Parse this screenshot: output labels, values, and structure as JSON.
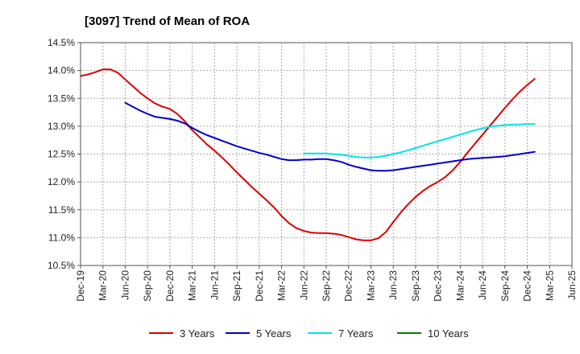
{
  "chart_data": {
    "type": "line",
    "title": "[3097]  Trend of Mean of ROA",
    "xlabel": "",
    "ylabel": "",
    "ylim": [
      10.5,
      14.5
    ],
    "xlim": [
      0,
      66
    ],
    "grid": true,
    "y_ticks": [
      {
        "value": 10.5,
        "label": "10.5%"
      },
      {
        "value": 11.0,
        "label": "11.0%"
      },
      {
        "value": 11.5,
        "label": "11.5%"
      },
      {
        "value": 12.0,
        "label": "12.0%"
      },
      {
        "value": 12.5,
        "label": "12.5%"
      },
      {
        "value": 13.0,
        "label": "13.0%"
      },
      {
        "value": 13.5,
        "label": "13.5%"
      },
      {
        "value": 14.0,
        "label": "14.0%"
      },
      {
        "value": 14.5,
        "label": "14.5%"
      }
    ],
    "x_ticks": [
      {
        "value": 0,
        "label": "Dec-19"
      },
      {
        "value": 3,
        "label": "Mar-20"
      },
      {
        "value": 6,
        "label": "Jun-20"
      },
      {
        "value": 9,
        "label": "Sep-20"
      },
      {
        "value": 12,
        "label": "Dec-20"
      },
      {
        "value": 15,
        "label": "Mar-21"
      },
      {
        "value": 18,
        "label": "Jun-21"
      },
      {
        "value": 21,
        "label": "Sep-21"
      },
      {
        "value": 24,
        "label": "Dec-21"
      },
      {
        "value": 27,
        "label": "Mar-22"
      },
      {
        "value": 30,
        "label": "Jun-22"
      },
      {
        "value": 33,
        "label": "Sep-22"
      },
      {
        "value": 36,
        "label": "Dec-22"
      },
      {
        "value": 39,
        "label": "Mar-23"
      },
      {
        "value": 42,
        "label": "Jun-23"
      },
      {
        "value": 45,
        "label": "Sep-23"
      },
      {
        "value": 48,
        "label": "Dec-23"
      },
      {
        "value": 51,
        "label": "Mar-24"
      },
      {
        "value": 54,
        "label": "Jun-24"
      },
      {
        "value": 57,
        "label": "Sep-24"
      },
      {
        "value": 60,
        "label": "Dec-24"
      },
      {
        "value": 63,
        "label": "Mar-25"
      },
      {
        "value": 66,
        "label": "Jun-25"
      }
    ],
    "series": [
      {
        "name": "3 Years",
        "color": "#dd0000",
        "points": [
          [
            0,
            13.9
          ],
          [
            1,
            13.93
          ],
          [
            2,
            13.97
          ],
          [
            3,
            14.02
          ],
          [
            4,
            14.02
          ],
          [
            5,
            13.96
          ],
          [
            6,
            13.84
          ],
          [
            7,
            13.72
          ],
          [
            8,
            13.6
          ],
          [
            9,
            13.5
          ],
          [
            10,
            13.41
          ],
          [
            11,
            13.35
          ],
          [
            12,
            13.31
          ],
          [
            13,
            13.22
          ],
          [
            14,
            13.09
          ],
          [
            15,
            12.93
          ],
          [
            16,
            12.8
          ],
          [
            17,
            12.67
          ],
          [
            18,
            12.56
          ],
          [
            19,
            12.44
          ],
          [
            20,
            12.31
          ],
          [
            21,
            12.17
          ],
          [
            22,
            12.04
          ],
          [
            23,
            11.91
          ],
          [
            24,
            11.79
          ],
          [
            25,
            11.67
          ],
          [
            26,
            11.54
          ],
          [
            27,
            11.39
          ],
          [
            28,
            11.26
          ],
          [
            29,
            11.17
          ],
          [
            30,
            11.12
          ],
          [
            31,
            11.09
          ],
          [
            32,
            11.08
          ],
          [
            33,
            11.08
          ],
          [
            34,
            11.07
          ],
          [
            35,
            11.05
          ],
          [
            36,
            11.01
          ],
          [
            37,
            10.97
          ],
          [
            38,
            10.95
          ],
          [
            39,
            10.95
          ],
          [
            40,
            10.99
          ],
          [
            41,
            11.1
          ],
          [
            42,
            11.28
          ],
          [
            43,
            11.45
          ],
          [
            44,
            11.6
          ],
          [
            45,
            11.73
          ],
          [
            46,
            11.84
          ],
          [
            47,
            11.93
          ],
          [
            48,
            12.0
          ],
          [
            49,
            12.09
          ],
          [
            50,
            12.21
          ],
          [
            51,
            12.36
          ],
          [
            52,
            12.53
          ],
          [
            53,
            12.69
          ],
          [
            54,
            12.85
          ],
          [
            55,
            13.01
          ],
          [
            56,
            13.17
          ],
          [
            57,
            13.33
          ],
          [
            58,
            13.48
          ],
          [
            59,
            13.62
          ],
          [
            60,
            13.74
          ],
          [
            61,
            13.85
          ]
        ]
      },
      {
        "name": "5 Years",
        "color": "#0000cc",
        "points": [
          [
            6,
            13.42
          ],
          [
            7,
            13.35
          ],
          [
            8,
            13.28
          ],
          [
            9,
            13.22
          ],
          [
            10,
            13.17
          ],
          [
            11,
            13.15
          ],
          [
            12,
            13.13
          ],
          [
            13,
            13.1
          ],
          [
            14,
            13.05
          ],
          [
            15,
            12.97
          ],
          [
            16,
            12.9
          ],
          [
            17,
            12.84
          ],
          [
            18,
            12.79
          ],
          [
            19,
            12.74
          ],
          [
            20,
            12.69
          ],
          [
            21,
            12.64
          ],
          [
            22,
            12.6
          ],
          [
            23,
            12.56
          ],
          [
            24,
            12.52
          ],
          [
            25,
            12.49
          ],
          [
            26,
            12.45
          ],
          [
            27,
            12.41
          ],
          [
            28,
            12.39
          ],
          [
            29,
            12.39
          ],
          [
            30,
            12.4
          ],
          [
            31,
            12.4
          ],
          [
            32,
            12.41
          ],
          [
            33,
            12.41
          ],
          [
            34,
            12.39
          ],
          [
            35,
            12.36
          ],
          [
            36,
            12.31
          ],
          [
            37,
            12.27
          ],
          [
            38,
            12.24
          ],
          [
            39,
            12.21
          ],
          [
            40,
            12.2
          ],
          [
            41,
            12.2
          ],
          [
            42,
            12.21
          ],
          [
            43,
            12.23
          ],
          [
            44,
            12.25
          ],
          [
            45,
            12.27
          ],
          [
            46,
            12.29
          ],
          [
            47,
            12.31
          ],
          [
            48,
            12.33
          ],
          [
            49,
            12.35
          ],
          [
            50,
            12.37
          ],
          [
            51,
            12.39
          ],
          [
            52,
            12.41
          ],
          [
            53,
            12.42
          ],
          [
            54,
            12.43
          ],
          [
            55,
            12.44
          ],
          [
            56,
            12.45
          ],
          [
            57,
            12.46
          ],
          [
            58,
            12.48
          ],
          [
            59,
            12.5
          ],
          [
            60,
            12.52
          ],
          [
            61,
            12.54
          ]
        ]
      },
      {
        "name": "7 Years",
        "color": "#00e5e5",
        "points": [
          [
            30,
            12.51
          ],
          [
            31,
            12.51
          ],
          [
            32,
            12.51
          ],
          [
            33,
            12.51
          ],
          [
            34,
            12.5
          ],
          [
            35,
            12.49
          ],
          [
            36,
            12.47
          ],
          [
            37,
            12.45
          ],
          [
            38,
            12.44
          ],
          [
            39,
            12.44
          ],
          [
            40,
            12.45
          ],
          [
            41,
            12.47
          ],
          [
            42,
            12.5
          ],
          [
            43,
            12.53
          ],
          [
            44,
            12.57
          ],
          [
            45,
            12.61
          ],
          [
            46,
            12.65
          ],
          [
            47,
            12.69
          ],
          [
            48,
            12.73
          ],
          [
            49,
            12.77
          ],
          [
            50,
            12.81
          ],
          [
            51,
            12.85
          ],
          [
            52,
            12.89
          ],
          [
            53,
            12.93
          ],
          [
            54,
            12.96
          ],
          [
            55,
            12.99
          ],
          [
            56,
            13.01
          ],
          [
            57,
            13.02
          ],
          [
            58,
            13.03
          ],
          [
            59,
            13.03
          ],
          [
            60,
            13.04
          ],
          [
            61,
            13.04
          ]
        ]
      },
      {
        "name": "10 Years",
        "color": "#008000",
        "points": []
      }
    ]
  }
}
